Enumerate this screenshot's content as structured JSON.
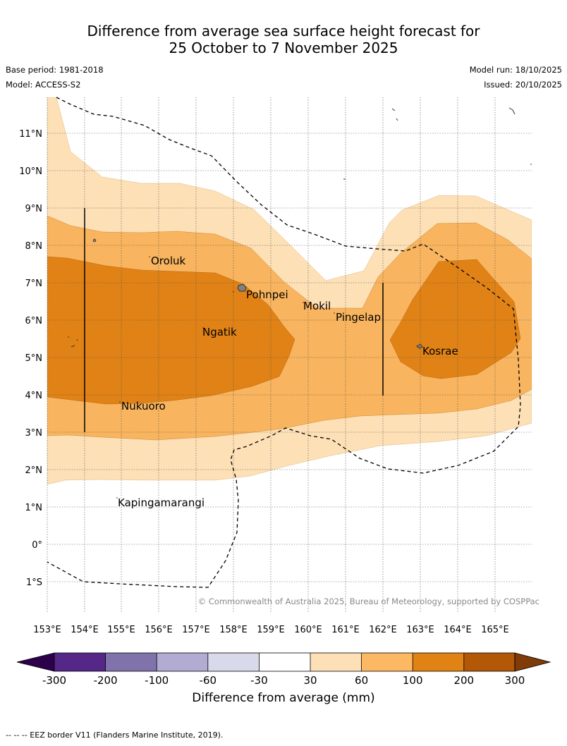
{
  "title": {
    "line1": "Difference from average sea surface height forecast for",
    "line2": "25 October to 7 November 2025"
  },
  "meta": {
    "base_period": "Base period: 1981-2018",
    "model": "Model: ACCESS-S2",
    "model_run": "Model run: 18/10/2025",
    "issued": "Issued: 20/10/2025"
  },
  "map": {
    "lon_labels": [
      "153°E",
      "154°E",
      "155°E",
      "156°E",
      "157°E",
      "158°E",
      "159°E",
      "160°E",
      "161°E",
      "162°E",
      "163°E",
      "164°E",
      "165°E"
    ],
    "lat_labels": [
      "11°N",
      "10°N",
      "9°N",
      "8°N",
      "7°N",
      "6°N",
      "5°N",
      "4°N",
      "3°N",
      "2°N",
      "1°N",
      "0°",
      "1°S"
    ],
    "places": [
      "Oroluk",
      "Pohnpei",
      "Mokil",
      "Pingelap",
      "Ngatik",
      "Kosrae",
      "Nukuoro",
      "Kapingamarangi"
    ],
    "credit": "© Commonwealth of Australia 2025, Bureau of Meteorology, supported by COSPPac",
    "fill_colors": {
      "30-60": "#fde0b6",
      "60-100": "#f8b45e",
      "100-200": "#e08216"
    }
  },
  "colorbar": {
    "ticks": [
      "-300",
      "-200",
      "-100",
      "-60",
      "-30",
      "30",
      "60",
      "100",
      "200",
      "300"
    ],
    "colors": [
      "#2d004b",
      "#542788",
      "#8073ac",
      "#b2abd2",
      "#d8daeb",
      "#ffffff",
      "#fee0b6",
      "#fdb863",
      "#e08214",
      "#b35806",
      "#7f3b08"
    ],
    "title": "Difference from average (mm)"
  },
  "footer": "--  --  -- EEZ border V11 (Flanders Marine Institute, 2019)."
}
